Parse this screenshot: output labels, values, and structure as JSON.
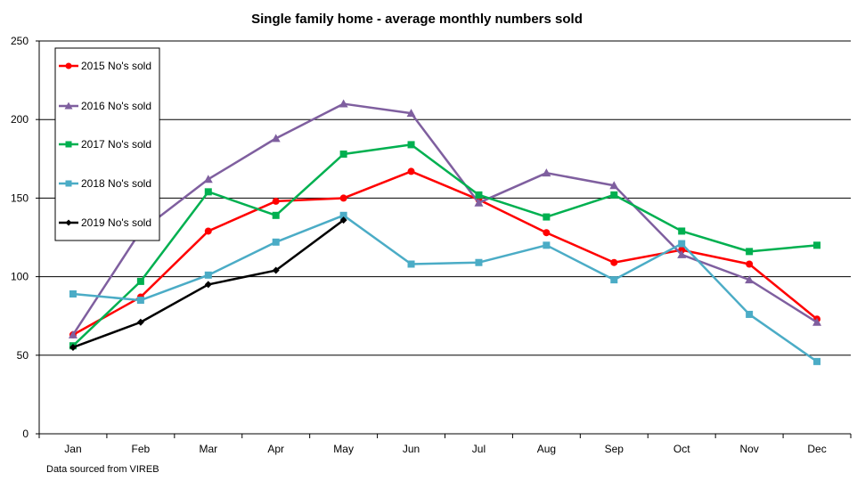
{
  "chart_data": {
    "type": "line",
    "title": "Single family home - average monthly numbers sold",
    "xlabel": "",
    "ylabel": "",
    "ylim": [
      0,
      250
    ],
    "yticks": [
      0,
      50,
      100,
      150,
      200,
      250
    ],
    "grid": true,
    "legend_position": "top-left",
    "categories": [
      "Jan",
      "Feb",
      "Mar",
      "Apr",
      "May",
      "Jun",
      "Jul",
      "Aug",
      "Sep",
      "Oct",
      "Nov",
      "Dec"
    ],
    "series": [
      {
        "name": "2015 No's sold",
        "color": "#ff0000",
        "marker": "circle",
        "values": [
          63,
          87,
          129,
          148,
          150,
          167,
          149,
          128,
          109,
          117,
          108,
          73
        ]
      },
      {
        "name": "2016 No's sold",
        "color": "#7f5f9f",
        "marker": "triangle",
        "values": [
          63,
          129,
          162,
          188,
          210,
          204,
          147,
          166,
          158,
          114,
          98,
          71
        ]
      },
      {
        "name": "2017 No's sold",
        "color": "#00b050",
        "marker": "square",
        "values": [
          56,
          97,
          154,
          139,
          178,
          184,
          152,
          138,
          152,
          129,
          116,
          120
        ]
      },
      {
        "name": "2018 No's sold",
        "color": "#4bacc6",
        "marker": "square",
        "values": [
          89,
          85,
          101,
          122,
          139,
          108,
          109,
          120,
          98,
          121,
          76,
          46
        ]
      },
      {
        "name": "2019 No's sold",
        "color": "#000000",
        "marker": "diamond",
        "values": [
          55,
          71,
          95,
          104,
          136,
          null,
          null,
          null,
          null,
          null,
          null,
          null
        ]
      }
    ]
  },
  "footnote": "Data sourced from VIREB"
}
